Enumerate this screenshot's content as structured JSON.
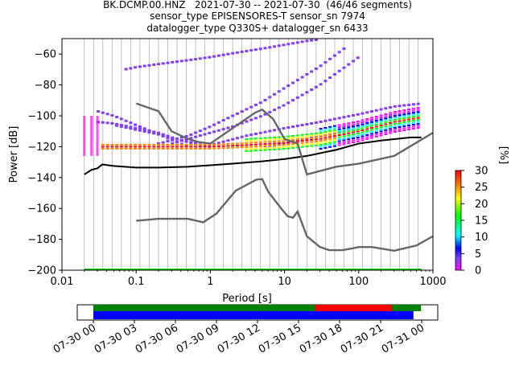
{
  "titles": {
    "line1": "BK.DCMP.00.HNZ   2021-07-30 -- 2021-07-30  (46/46 segments)",
    "line2": "sensor_type EPISENSORES-T sensor_sn 7974",
    "line3": "datalogger_type Q330S+ datalogger_sn 6433"
  },
  "chart_data": [
    {
      "type": "heatmap",
      "xlabel": "Period [s]",
      "ylabel": "Power [dB]",
      "xscale": "log",
      "xlim": [
        0.01,
        1000
      ],
      "ylim": [
        -200,
        -50
      ],
      "xticks": [
        0.01,
        0.1,
        1,
        10,
        100,
        1000
      ],
      "xtick_labels": [
        "0.01",
        "0.1",
        "1",
        "10",
        "100",
        "1000"
      ],
      "yticks": [
        -60,
        -80,
        -100,
        -120,
        -140,
        -160,
        -180,
        -200
      ],
      "ytick_labels": [
        "−60",
        "−80",
        "−100",
        "−120",
        "−140",
        "−160",
        "−180",
        "−200"
      ],
      "grid": "vertical period bins",
      "colorbar": {
        "label": "[%]",
        "range": [
          0,
          30
        ],
        "ticks": [
          0,
          5,
          10,
          15,
          20,
          25,
          30
        ],
        "tick_labels": [
          "0",
          "5",
          "10",
          "15",
          "20",
          "25",
          "30"
        ],
        "colors": [
          "#ff00ff",
          "#7f3fff",
          "#0000ff",
          "#00ffff",
          "#00ff00",
          "#ffff00",
          "#ff7f00",
          "#ff0000"
        ]
      },
      "lines": [
        {
          "name": "mode",
          "color": "#000000",
          "x": [
            0.02,
            0.025,
            0.03,
            0.035,
            0.05,
            0.1,
            0.2,
            0.5,
            1,
            2,
            5,
            10,
            20,
            50,
            100,
            200,
            500,
            700
          ],
          "y": [
            -138,
            -135,
            -134,
            -131.5,
            -132.5,
            -133.5,
            -133.5,
            -133,
            -132,
            -131,
            -129.5,
            -128,
            -126,
            -122,
            -118,
            -116,
            -114,
            -114
          ]
        },
        {
          "name": "noise model high",
          "color": "#666666",
          "x": [
            0.1,
            0.2,
            0.3,
            0.5,
            0.7,
            1,
            2,
            4,
            5,
            7,
            10,
            15,
            20,
            50,
            100,
            300,
            1000
          ],
          "y": [
            -92,
            -97,
            -110,
            -115,
            -117,
            -118,
            -108,
            -98,
            -96,
            -102,
            -115,
            -118,
            -138,
            -133,
            -131,
            -126,
            -111
          ]
        },
        {
          "name": "noise model low",
          "color": "#666666",
          "x": [
            0.1,
            0.2,
            0.5,
            0.8,
            1.2,
            2.2,
            4.2,
            5,
            6,
            9,
            11,
            13,
            15,
            20,
            30,
            40,
            60,
            80,
            100,
            150,
            300,
            600,
            1000
          ],
          "y": [
            -168,
            -166.7,
            -166.7,
            -169,
            -163.5,
            -148.5,
            -141.3,
            -141,
            -149,
            -160,
            -165,
            -166,
            -162,
            -178,
            -185,
            -187,
            -187,
            -186,
            -185,
            -185,
            -187.4,
            -184,
            -178
          ]
        }
      ],
      "psd_bands": [
        {
          "name": "peak upper",
          "x": [
            0.07,
            0.1,
            0.2,
            0.5,
            1,
            2,
            5,
            10,
            20,
            30
          ],
          "y": [
            -70,
            -68.5,
            -66.5,
            -64,
            -62,
            -59.5,
            -56.5,
            -54,
            -51.5,
            -50.5
          ],
          "value": 3
        },
        {
          "name": "peak a",
          "x": [
            0.2,
            0.5,
            1,
            2,
            5,
            10,
            30,
            70
          ],
          "y": [
            -118,
            -113,
            -107,
            -100,
            -91,
            -82,
            -68,
            -55
          ],
          "value": 4
        },
        {
          "name": "peak b",
          "x": [
            0.3,
            0.5,
            1,
            2,
            5,
            10,
            30,
            100
          ],
          "y": [
            -118,
            -115,
            -111,
            -107,
            -100,
            -93,
            -80,
            -62
          ],
          "value": 4
        },
        {
          "name": "peak c",
          "x": [
            0.05,
            0.1,
            0.2,
            0.5,
            1
          ],
          "y": [
            -106,
            -109,
            -112,
            -117,
            -120
          ],
          "value": 6
        },
        {
          "name": "peak d",
          "x": [
            0.03,
            0.05,
            0.1,
            0.2,
            0.5
          ],
          "y": [
            -97,
            -100,
            -106,
            -112,
            -120
          ],
          "value": 6
        },
        {
          "name": "peak e",
          "x": [
            0.03,
            0.05,
            0.1,
            0.2,
            0.4,
            0.7
          ],
          "y": [
            -104,
            -105,
            -108,
            -111,
            -116,
            -118
          ],
          "value": 4
        },
        {
          "name": "secondary",
          "x": [
            1,
            3,
            10,
            30,
            100,
            300,
            700
          ],
          "y": [
            -119,
            -113,
            -108,
            -104,
            -99,
            -94,
            -92
          ],
          "value": 5
        },
        {
          "name": "secondary b",
          "x": [
            5,
            10,
            30,
            100,
            300,
            700
          ],
          "y": [
            -121,
            -118,
            -113,
            -107,
            -101,
            -98
          ],
          "value": 6
        }
      ],
      "dense_band": {
        "x": [
          0.035,
          1,
          3,
          10,
          30,
          100,
          300,
          700
        ],
        "y": [
          -120,
          -120,
          -119,
          -117.5,
          -115,
          -110,
          -104,
          -101
        ]
      },
      "bottom_line": {
        "y": -200,
        "color": "#00cc00"
      }
    },
    {
      "type": "timeline",
      "xtick_labels": [
        "07-30 00",
        "07-30 03",
        "07-30 06",
        "07-30 09",
        "07-30 12",
        "07-30 15",
        "07-30 18",
        "07-30 21",
        "07-31 00"
      ],
      "bars": [
        {
          "name": "data",
          "color": "#008000",
          "start_h": 0,
          "end_h": 23.95,
          "row": 0
        },
        {
          "name": "red",
          "color": "#ff0000",
          "start_h": 16.2,
          "end_h": 21.8,
          "row": 0
        },
        {
          "name": "blue",
          "color": "#0000ff",
          "start_h": 0,
          "end_h": 23.4,
          "row": 1
        }
      ]
    }
  ]
}
